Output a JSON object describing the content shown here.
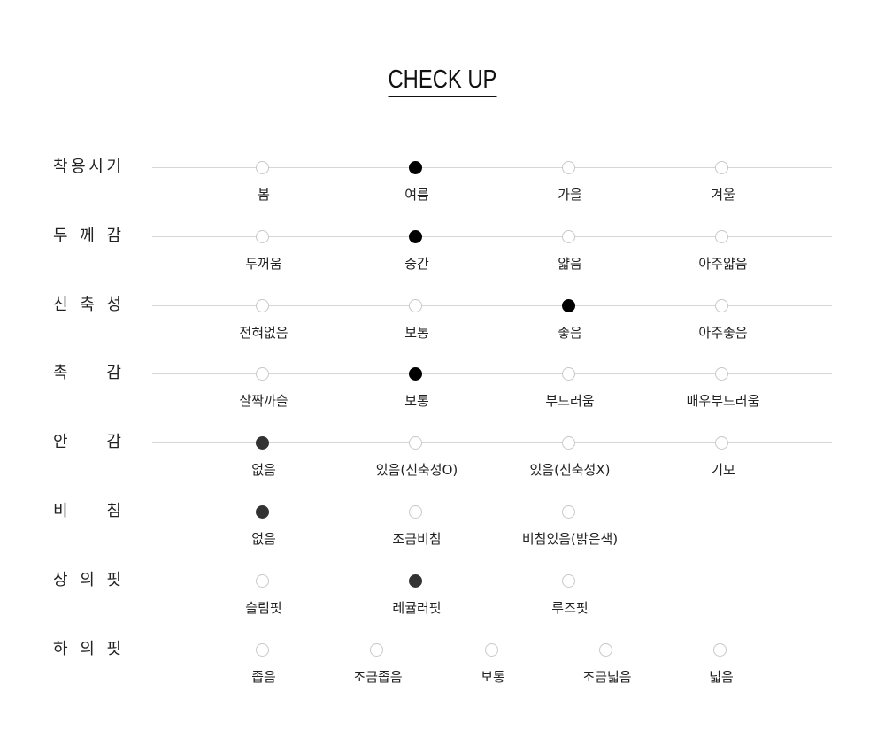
{
  "title": "CHECK UP",
  "colors": {
    "selected_dark": "#000000",
    "selected_gray": "#333333",
    "line": "#d6d6d6",
    "unselected_border": "#c8c8c8"
  },
  "rows": [
    {
      "label": "착용시기",
      "options": [
        "봄",
        "여름",
        "가을",
        "겨울"
      ],
      "selected": 1,
      "selected_color": "#000000"
    },
    {
      "label": "두께감",
      "options": [
        "두꺼움",
        "중간",
        "얇음",
        "아주얇음"
      ],
      "selected": 1,
      "selected_color": "#000000"
    },
    {
      "label": "신축성",
      "options": [
        "전혀없음",
        "보통",
        "좋음",
        "아주좋음"
      ],
      "selected": 2,
      "selected_color": "#000000"
    },
    {
      "label": "촉감",
      "options": [
        "살짝까슬",
        "보통",
        "부드러움",
        "매우부드러움"
      ],
      "selected": 1,
      "selected_color": "#000000"
    },
    {
      "label": "안감",
      "options": [
        "없음",
        "있음(신축성O)",
        "있음(신축성X)",
        "기모"
      ],
      "selected": 0,
      "selected_color": "#333333"
    },
    {
      "label": "비침",
      "options": [
        "없음",
        "조금비침",
        "비침있음(밝은색)"
      ],
      "selected": 0,
      "selected_color": "#333333"
    },
    {
      "label": "상의핏",
      "options": [
        "슬림핏",
        "레귤러핏",
        "루즈핏"
      ],
      "selected": 1,
      "selected_color": "#333333"
    },
    {
      "label": "하의핏",
      "options": [
        "좁음",
        "조금좁음",
        "보통",
        "조금넓음",
        "넓음"
      ],
      "selected": null,
      "selected_color": "#333333"
    }
  ]
}
